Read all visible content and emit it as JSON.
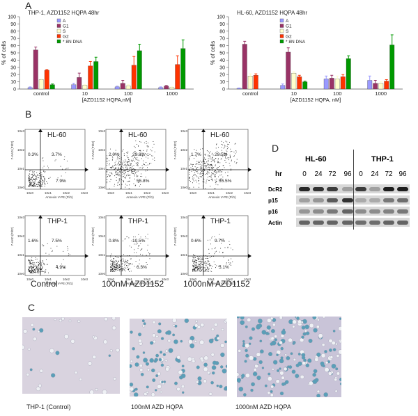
{
  "panels": {
    "a": "A",
    "b": "B",
    "c": "C",
    "d": "D"
  },
  "chart_data": [
    {
      "type": "bar",
      "title": "THP-1, AZD1152 HQPA 48hr",
      "xlabel": "[AZD1152 HQPA,nM]",
      "ylabel": "% of cells",
      "ylim": [
        0,
        100
      ],
      "yticks": [
        "0",
        "10",
        "20",
        "30",
        "40",
        "50",
        "60",
        "70",
        "80",
        "90",
        "100"
      ],
      "categories": [
        "control",
        "10",
        "100",
        "1000"
      ],
      "legend": "top-center",
      "series": [
        {
          "name": "A",
          "color": "#9999ff",
          "values": [
            2,
            6,
            3,
            2
          ],
          "errors": [
            1,
            2,
            1,
            1
          ]
        },
        {
          "name": "G1",
          "color": "#993366",
          "values": [
            54,
            16,
            8,
            4
          ],
          "errors": [
            4,
            6,
            4,
            1
          ]
        },
        {
          "name": "S",
          "color": "#ffffcc",
          "values": [
            13,
            5,
            4,
            2
          ],
          "errors": [
            1,
            1,
            2,
            1
          ]
        },
        {
          "name": "G2",
          "color": "#ff3300",
          "values": [
            26,
            32,
            33,
            34
          ],
          "errors": [
            1,
            6,
            12,
            12
          ]
        },
        {
          "name": "* 8N DNA",
          "color": "#009900",
          "values": [
            6,
            38,
            53,
            56
          ],
          "errors": [
            1,
            6,
            9,
            12
          ]
        }
      ]
    },
    {
      "type": "bar",
      "title": "HL-60, AZD1152 HQPA 48hr",
      "xlabel": "[AZD1152 HQPA, nM]",
      "ylabel": "% of cells",
      "ylim": [
        0,
        100
      ],
      "yticks": [
        "0",
        "10",
        "20",
        "30",
        "40",
        "50",
        "60",
        "70",
        "80",
        "90",
        "100"
      ],
      "categories": [
        "control",
        "10",
        "100",
        "1000"
      ],
      "legend": "top-center",
      "series": [
        {
          "name": "A",
          "color": "#9999ff",
          "values": [
            1,
            5,
            14,
            12
          ],
          "errors": [
            0.5,
            2,
            4,
            6
          ]
        },
        {
          "name": "G1",
          "color": "#993366",
          "values": [
            62,
            51,
            15,
            8
          ],
          "errors": [
            4,
            6,
            4,
            4
          ]
        },
        {
          "name": "S",
          "color": "#ffffcc",
          "values": [
            18,
            22,
            14,
            8
          ],
          "errors": [
            3,
            2,
            4,
            2
          ]
        },
        {
          "name": "G2",
          "color": "#ff3300",
          "values": [
            19,
            17,
            17,
            11
          ],
          "errors": [
            2,
            2,
            3,
            2
          ]
        },
        {
          "name": "* 8N DNA",
          "color": "#009900",
          "values": [
            0,
            10,
            42,
            61
          ],
          "errors": [
            0,
            1,
            4,
            14
          ]
        }
      ]
    }
  ],
  "flow": {
    "ylab": "7-AAD (PI/t2)",
    "xlab": "Annexin V-PE (Fl/1)",
    "xticks": [
      "10e0",
      "10e1",
      "10e2",
      "10e3"
    ],
    "yticks": [
      "10e3",
      "10e2",
      "10e1",
      "10e0"
    ],
    "plots": [
      {
        "cell": "HL-60",
        "ul": "0.3%",
        "ur": "3.7%",
        "lr": "7.9%",
        "scatter": 0
      },
      {
        "cell": "HL-60",
        "ul": "2.0%",
        "ur": "29.8%",
        "lr": "55.8%",
        "scatter": 2
      },
      {
        "cell": "HL-60",
        "ul": "1.7%",
        "ur": "29.5%",
        "lr": "55.5%",
        "scatter": 2
      },
      {
        "cell": "THP-1",
        "ul": "1.6%",
        "ur": "7.5%",
        "lr": "4.9%",
        "scatter": 0
      },
      {
        "cell": "THP-1",
        "ul": "0.8%",
        "ur": "10.5%",
        "lr": "6.3%",
        "scatter": 1
      },
      {
        "cell": "THP-1",
        "ul": "0.6%",
        "ur": "9.7%",
        "lr": "5.1%",
        "scatter": 1
      }
    ],
    "conditions": [
      "Control",
      "100nM AZD1152",
      "1000nM AZD1152"
    ]
  },
  "western": {
    "groups": [
      "HL-60",
      "THP-1"
    ],
    "hr_label": "hr",
    "timepoints": [
      "0",
      "24",
      "72",
      "96",
      "0",
      "24",
      "72",
      "96"
    ],
    "proteins": [
      "DcR2",
      "p15",
      "p16",
      "Actin"
    ]
  },
  "micrographs": [
    "THP-1 (Control)",
    "100nM AZD HQPA",
    "1000nM AZD HQPA"
  ]
}
